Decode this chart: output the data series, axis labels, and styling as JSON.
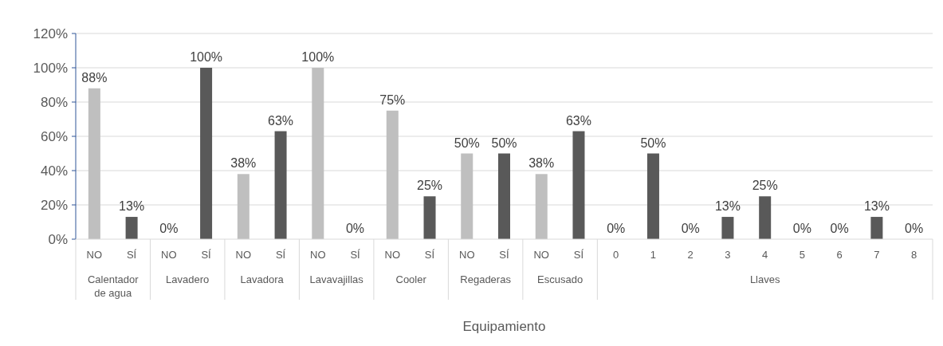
{
  "chart_data": {
    "type": "bar",
    "xlabel": "Equipamiento",
    "categories": [
      "NO",
      "SÍ",
      "NO",
      "SÍ",
      "NO",
      "SÍ",
      "NO",
      "SÍ",
      "NO",
      "SÍ",
      "NO",
      "SÍ",
      "NO",
      "SÍ",
      "0",
      "1",
      "2",
      "3",
      "4",
      "5",
      "6",
      "7",
      "8"
    ],
    "series": [
      {
        "values": [
          88,
          13,
          0,
          100,
          38,
          63,
          100,
          0,
          75,
          25,
          50,
          50,
          38,
          63,
          0,
          50,
          0,
          13,
          25,
          0,
          0,
          13,
          0
        ],
        "colors": [
          "#bfbfbf",
          "#595959",
          "#bfbfbf",
          "#595959",
          "#bfbfbf",
          "#595959",
          "#bfbfbf",
          "#595959",
          "#bfbfbf",
          "#595959",
          "#bfbfbf",
          "#595959",
          "#bfbfbf",
          "#595959",
          "#595959",
          "#595959",
          "#595959",
          "#595959",
          "#595959",
          "#595959",
          "#595959",
          "#595959",
          "#595959"
        ],
        "value_labels": [
          "88%",
          "13%",
          "0%",
          "100%",
          "38%",
          "63%",
          "100%",
          "0%",
          "75%",
          "25%",
          "50%",
          "50%",
          "38%",
          "63%",
          "0%",
          "50%",
          "0%",
          "13%",
          "25%",
          "0%",
          "0%",
          "13%",
          "0%"
        ]
      }
    ],
    "annotations": [
      "Calentador de agua",
      "Lavadero",
      "Lavadora",
      "Lavavajillas",
      "Cooler",
      "Regaderas",
      "Escusado",
      "Llaves"
    ],
    "ylim": [
      0,
      120
    ],
    "yticks": [
      {
        "value": 0,
        "label": "0%"
      },
      {
        "value": 20,
        "label": "20%"
      },
      {
        "value": 40,
        "label": "40%"
      },
      {
        "value": 60,
        "label": "60%"
      },
      {
        "value": 80,
        "label": "80%"
      },
      {
        "value": 100,
        "label": "100%"
      },
      {
        "value": 120,
        "label": "120%"
      }
    ],
    "grid": "y"
  }
}
